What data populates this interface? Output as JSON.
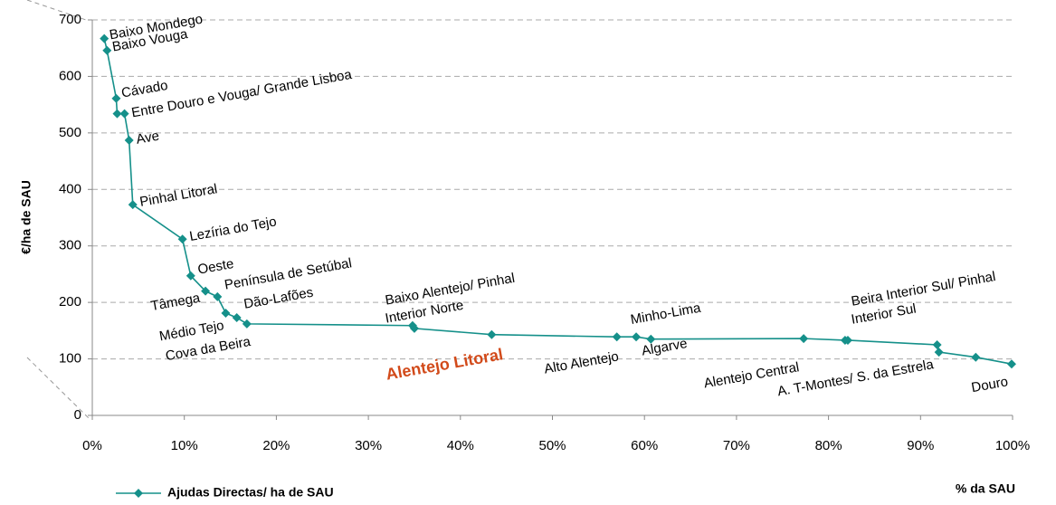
{
  "chart_data": {
    "type": "line",
    "y_label": "€/ha de SAU",
    "x_label": "% da SAU",
    "x": [
      1.3,
      1.6,
      2.6,
      2.7,
      3.5,
      4.0,
      4.4,
      9.8,
      10.7,
      12.3,
      13.6,
      14.5,
      15.7,
      16.8,
      34.8,
      35.0,
      43.4,
      57.0,
      59.1,
      60.7,
      77.3,
      81.8,
      82.1,
      91.8,
      92.0,
      96.0,
      99.9
    ],
    "series": [
      {
        "name": "Ajudas Directas/ ha de SAU",
        "color": "#15908a",
        "values": [
          667,
          646,
          561,
          534,
          534,
          487,
          373,
          312,
          247,
          220,
          210,
          181,
          173,
          162,
          159,
          154,
          143,
          139,
          139,
          135,
          136,
          133,
          133,
          125,
          112,
          103,
          91
        ]
      }
    ],
    "point_labels": [
      [
        "Baixo Mondego"
      ],
      [
        "Baixo Vouga"
      ],
      [
        "Cávado"
      ],
      null,
      [
        "Entre Douro e Vouga/ Grande Lisboa"
      ],
      [
        "Ave"
      ],
      [
        "Pinhal Litoral"
      ],
      [
        "Lezíria do Tejo"
      ],
      [
        "Oeste"
      ],
      [
        "Tâmega"
      ],
      [
        "Península de Setúbal"
      ],
      [
        "Médio Tejo"
      ],
      [
        "Dão-Lafões"
      ],
      [
        "Cova da Beira"
      ],
      null,
      [
        "Baixo Alentejo/ Pinhal",
        "Interior Norte"
      ],
      [
        "Alentejo Litoral"
      ],
      [
        "Alto Alentejo"
      ],
      [
        "Minho-Lima"
      ],
      [
        "Algarve"
      ],
      [
        "Alentejo Central"
      ],
      null,
      [
        "Beira Interior Sul/ Pinhal",
        "Interior Sul"
      ],
      null,
      [
        "A. T-Montes/ S. da Estrela"
      ],
      null,
      [
        "Douro"
      ]
    ],
    "highlight_color": "#d24a1a",
    "xlim": [
      0,
      100
    ],
    "xticks": [
      {
        "value": 0,
        "label": "0%"
      },
      {
        "value": 10,
        "label": "10%"
      },
      {
        "value": 20,
        "label": "20%"
      },
      {
        "value": 30,
        "label": "30%"
      },
      {
        "value": 40,
        "label": "40%"
      },
      {
        "value": 50,
        "label": "50%"
      },
      {
        "value": 60,
        "label": "60%"
      },
      {
        "value": 70,
        "label": "70%"
      },
      {
        "value": 80,
        "label": "80%"
      },
      {
        "value": 90,
        "label": "90%"
      },
      {
        "value": 100,
        "label": "100%"
      }
    ],
    "ylim": [
      0,
      700
    ],
    "yticks": [
      0,
      100,
      200,
      300,
      400,
      500,
      600,
      700
    ],
    "grid": true,
    "legend": "bottom-left"
  }
}
